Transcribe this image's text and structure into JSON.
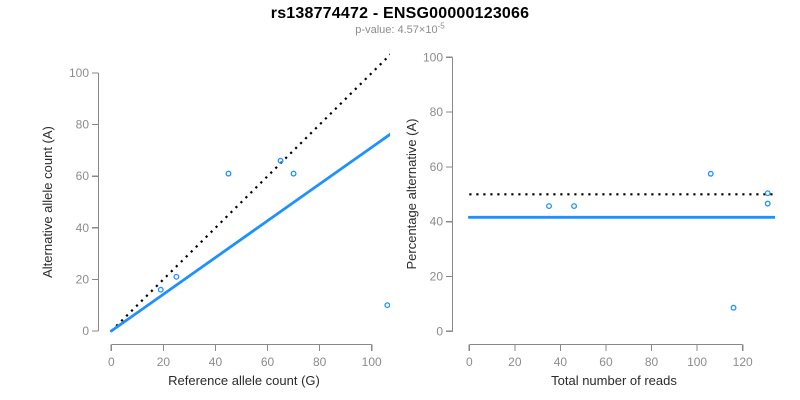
{
  "header": {
    "title": "rs138774472 - ENSG00000123066",
    "subtitle_prefix": "p-value: 4.57×10",
    "subtitle_exponent": "-5"
  },
  "colors": {
    "point_blue": "#1E90FF",
    "fit_line_blue": "#1E90FF",
    "reference_line_black": "#000000",
    "axis_gray": "#888888",
    "tick_label_gray": "#8c8c8c",
    "axis_title_color": "#2b2b2b",
    "title_color": "#000000",
    "subtitle_color": "#8c8c8c",
    "background": "#ffffff"
  },
  "chart_data": [
    {
      "type": "scatter",
      "name": "allele-counts-panel",
      "xlabel": "Reference allele count (G)",
      "ylabel": "Alternative allele count (A)",
      "xlim": [
        0,
        100
      ],
      "ylim": [
        0,
        100
      ],
      "xticks": [
        0,
        20,
        40,
        60,
        80,
        100
      ],
      "yticks": [
        0,
        20,
        40,
        60,
        80,
        100
      ],
      "grid": false,
      "legend": "none",
      "points": [
        {
          "x": 19,
          "y": 16
        },
        {
          "x": 25,
          "y": 21
        },
        {
          "x": 45,
          "y": 61
        },
        {
          "x": 65,
          "y": 66
        },
        {
          "x": 70,
          "y": 61
        },
        {
          "x": 106,
          "y": 10
        }
      ],
      "lines": [
        {
          "name": "identity-line",
          "kind": "abline",
          "slope": 1,
          "intercept": 0,
          "style": "dotted",
          "color": "reference_line_black"
        },
        {
          "name": "fit-line",
          "kind": "abline",
          "slope": 0.712,
          "intercept": 0,
          "style": "solid",
          "color": "fit_line_blue"
        }
      ]
    },
    {
      "type": "scatter",
      "name": "percentage-panel",
      "xlabel": "Total number of reads",
      "ylabel": "Percentage alternative (A)",
      "xlim": [
        0,
        120
      ],
      "ylim": [
        0,
        100
      ],
      "xticks": [
        0,
        20,
        40,
        60,
        80,
        100,
        120
      ],
      "yticks": [
        0,
        20,
        40,
        60,
        80,
        100
      ],
      "grid": false,
      "legend": "none",
      "points": [
        {
          "x": 35,
          "y": 45.7
        },
        {
          "x": 46,
          "y": 45.7
        },
        {
          "x": 106,
          "y": 57.5
        },
        {
          "x": 131,
          "y": 50.4
        },
        {
          "x": 131,
          "y": 46.6
        },
        {
          "x": 116,
          "y": 8.6
        }
      ],
      "lines": [
        {
          "name": "expected-50pct-line",
          "kind": "hline",
          "y": 50,
          "style": "dotted",
          "color": "reference_line_black"
        },
        {
          "name": "mean-pct-line",
          "kind": "hline",
          "y": 41.6,
          "style": "solid",
          "color": "fit_line_blue"
        }
      ]
    }
  ]
}
